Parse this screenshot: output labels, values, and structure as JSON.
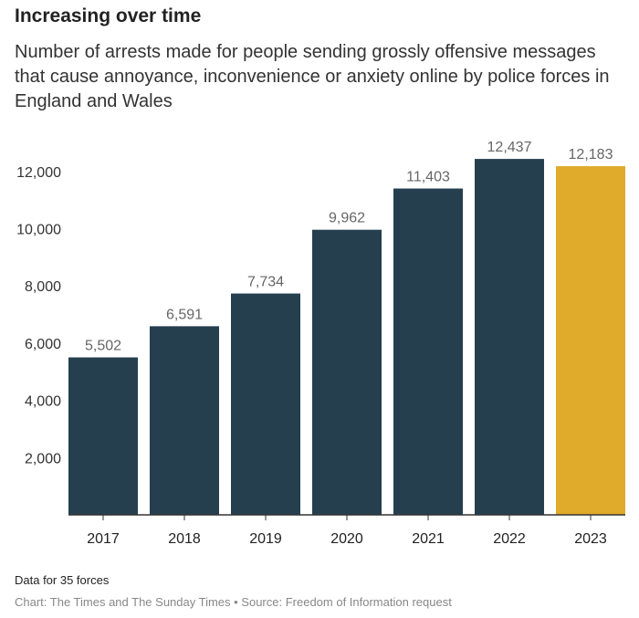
{
  "title": "Increasing over time",
  "subtitle": "Number of arrests made for people sending grossly offensive messages that cause annoyance, inconvenience or anxiety online by police forces in England and Wales",
  "note": "Data for 35 forces",
  "source": "Chart: The Times and The Sunday Times • Source: Freedom of Information request",
  "chart_data": {
    "type": "bar",
    "title": "Increasing over time",
    "xlabel": "",
    "ylabel": "",
    "categories": [
      "2017",
      "2018",
      "2019",
      "2020",
      "2021",
      "2022",
      "2023"
    ],
    "values": [
      5502,
      6591,
      7734,
      9962,
      11403,
      12437,
      12183
    ],
    "value_labels": [
      "5,502",
      "6,591",
      "7,734",
      "9,962",
      "11,403",
      "12,437",
      "12,183"
    ],
    "yticks": [
      2000,
      4000,
      6000,
      8000,
      10000,
      12000
    ],
    "ytick_labels": [
      "2,000",
      "4,000",
      "6,000",
      "8,000",
      "10,000",
      "12,000"
    ],
    "ylim": [
      0,
      12437
    ],
    "grid": false,
    "colors": {
      "default": "#253f4e",
      "highlight": "#e0aa2a",
      "label": "#666666"
    },
    "highlight_index": 6
  }
}
